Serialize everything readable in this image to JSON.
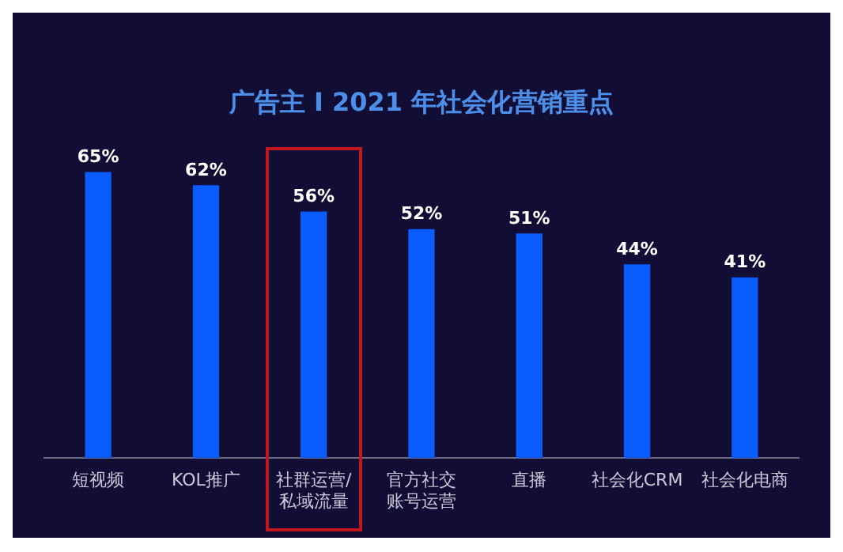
{
  "chart_data": {
    "type": "bar",
    "title": "广告主 I 2021 年社会化营销重点",
    "categories": [
      "短视频",
      "KOL推广",
      "社群运营/私域流量",
      "官方社交账号运营",
      "直播",
      "社会化CRM",
      "社会化电商"
    ],
    "values": [
      65,
      62,
      56,
      52,
      51,
      44,
      41
    ],
    "value_labels": [
      "65%",
      "62%",
      "56%",
      "52%",
      "51%",
      "44%",
      "41%"
    ],
    "color": "#0a5cff",
    "grid": false,
    "legend": false
  }
}
